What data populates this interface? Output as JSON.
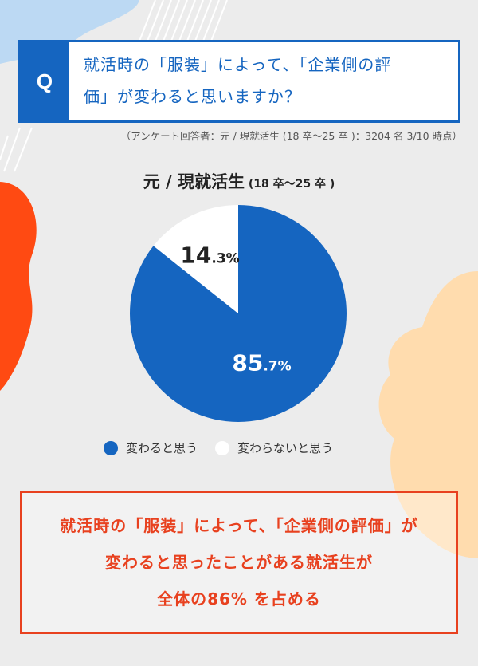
{
  "question": {
    "badge": "Q",
    "line1": "就活時の「服装」によって、「企業側の評",
    "line2": "価」が変わると思いますか？"
  },
  "survey_note": "（アンケート回答者：元 / 現就活生 (18 卒〜25 卒 )：3204 名 3/10 時点）",
  "chart_title": {
    "main": "元 / 現就活生",
    "sub": " (18 卒〜25 卒 )"
  },
  "chart_data": {
    "type": "pie",
    "title": "元 / 現就活生 (18 卒〜25 卒 )",
    "slices": [
      {
        "label": "変わると思う",
        "value": 85.7,
        "display_main": "85",
        "display_dec": ".7%",
        "color": "#1565c0"
      },
      {
        "label": "変わらないと思う",
        "value": 14.3,
        "display_main": "14",
        "display_dec": ".3%",
        "color": "#ffffff"
      }
    ]
  },
  "conclusion": {
    "line1": "就活時の「服装」によって、「企業側の評価」が",
    "line2": "変わると思ったことがある就活生が",
    "line3": "全体の86% を占める"
  },
  "colors": {
    "accent_blue": "#1565c0",
    "accent_red": "#e8411f",
    "blob_orange": "#ff4a12",
    "blob_peach": "#ffdcae",
    "blob_lightblue": "#bcd9f3"
  }
}
